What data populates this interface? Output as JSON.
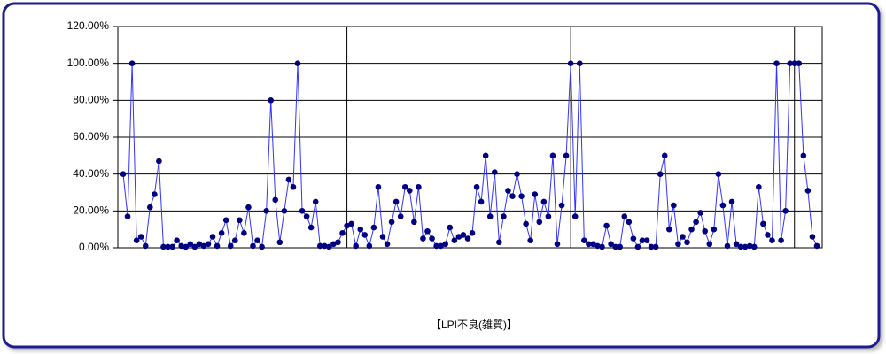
{
  "chart_data": {
    "type": "line",
    "x_label": "【LPI不良(雑質)】",
    "categories": [
      null,
      null,
      null,
      null,
      null,
      null,
      null,
      null,
      null,
      null,
      null,
      null,
      null,
      null,
      null,
      null,
      null,
      null,
      null,
      null,
      null,
      null,
      null,
      null,
      null,
      null,
      null,
      null,
      null,
      null,
      null,
      null,
      null,
      null,
      null,
      null,
      null,
      null,
      null,
      null,
      null,
      null,
      null,
      null,
      null,
      null,
      null,
      null,
      null,
      null,
      null,
      null,
      null,
      null,
      null,
      null,
      null,
      null,
      null,
      null,
      null,
      null,
      null,
      null,
      null,
      null,
      null,
      null,
      null,
      null,
      null,
      null,
      null,
      null,
      null,
      null,
      null,
      null,
      null,
      null,
      null,
      null,
      null,
      null,
      null,
      null,
      null,
      null,
      null,
      null,
      null,
      null,
      null,
      null,
      null,
      null,
      null,
      null,
      null,
      null,
      null,
      null,
      null,
      null,
      null,
      null,
      null,
      null,
      null,
      null,
      null,
      null,
      null,
      null,
      null,
      null,
      null,
      null,
      null,
      null,
      null,
      null,
      null,
      null,
      null,
      null,
      null,
      null,
      null,
      null,
      null,
      null,
      null,
      null,
      null,
      null,
      null,
      null,
      null,
      null,
      null,
      null,
      null,
      null,
      null,
      null,
      null,
      null,
      null,
      null,
      null,
      null,
      null,
      null,
      null,
      null
    ],
    "series": [
      {
        "name": null,
        "color": "#3333ff",
        "marker_color": "#000080",
        "values": [
          40,
          17,
          100,
          4,
          6,
          1,
          22,
          29,
          47,
          0.5,
          0.5,
          0.5,
          4,
          1,
          0.5,
          2,
          0.5,
          2,
          1,
          2,
          6,
          1,
          8,
          15,
          1,
          4,
          15,
          8,
          22,
          1,
          4,
          0.5,
          20,
          80,
          26,
          3,
          20,
          37,
          33,
          100,
          20,
          17,
          11,
          25,
          1,
          1,
          0.5,
          2,
          3,
          8,
          12,
          13,
          1,
          10,
          7,
          1,
          11,
          33,
          6,
          2,
          14,
          25,
          17,
          33,
          31,
          14,
          33,
          5,
          9,
          5,
          1,
          1,
          2,
          11,
          4,
          6,
          7,
          5,
          8,
          33,
          25,
          50,
          17,
          41,
          3,
          17,
          31,
          28,
          40,
          28,
          13,
          4,
          29,
          14,
          25,
          17,
          50,
          2,
          23,
          50,
          100,
          17,
          100,
          4,
          2,
          2,
          1,
          0.5,
          12,
          2,
          0.5,
          0.5,
          17,
          14,
          5,
          0.5,
          4,
          4,
          0.5,
          0.5,
          40,
          50,
          10,
          23,
          2,
          6,
          3,
          10,
          14,
          19,
          9,
          2,
          10,
          40,
          23,
          1,
          25,
          2,
          0.5,
          0.5,
          1,
          0.5,
          33,
          13,
          7,
          4,
          100,
          4,
          20,
          100,
          100,
          100,
          50,
          31,
          6,
          1
        ]
      }
    ],
    "ylim": [
      0,
      120
    ],
    "yticks": [
      {
        "value": 0,
        "label": "0.00%"
      },
      {
        "value": 20,
        "label": "20.00%"
      },
      {
        "value": 40,
        "label": "40.00%"
      },
      {
        "value": 60,
        "label": "60.00%"
      },
      {
        "value": 80,
        "label": "80.00%"
      },
      {
        "value": 100,
        "label": "100.00%"
      },
      {
        "value": 120,
        "label": "120.00%"
      }
    ],
    "grid": true
  }
}
